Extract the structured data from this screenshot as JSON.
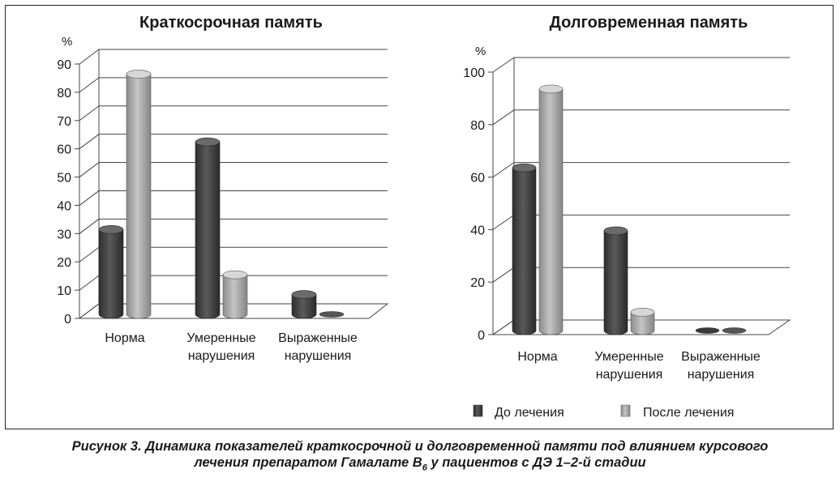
{
  "chart_data": [
    {
      "type": "bar",
      "title": "Краткосрочная память",
      "ylabel": "%",
      "ylim": [
        0,
        90
      ],
      "yticks": [
        "0",
        "10",
        "20",
        "30",
        "40",
        "50",
        "60",
        "70",
        "80",
        "90"
      ],
      "categories": [
        "Норма",
        "Умеренные нарушения",
        "Выраженные нарушения"
      ],
      "series": [
        {
          "name": "До лечения",
          "values": [
            30,
            61,
            7
          ]
        },
        {
          "name": "После лечения",
          "values": [
            85,
            14,
            0
          ]
        }
      ],
      "grid": true
    },
    {
      "type": "bar",
      "title": "Долговременная память",
      "ylabel": "%",
      "ylim": [
        0,
        100
      ],
      "yticks": [
        "0",
        "20",
        "40",
        "60",
        "80",
        "100"
      ],
      "categories": [
        "Норма",
        "Умеренные нарушения",
        "Выраженные нарушения"
      ],
      "series": [
        {
          "name": "До лечения",
          "values": [
            62,
            38,
            0
          ]
        },
        {
          "name": "После лечения",
          "values": [
            92,
            7,
            0
          ]
        }
      ],
      "grid": true
    }
  ],
  "legend": {
    "items": [
      "До лечения",
      "После лечения"
    ],
    "colors": [
      "#4a4a4a",
      "#a6a6a6"
    ]
  },
  "caption": {
    "line1": "Рисунок 3. Динамика показателей краткосрочной и долговременной памяти под влиянием курсового",
    "line2_before": "лечения препаратом Гамалате В",
    "line2_sub": "6",
    "line2_after": " у пациентов с ДЭ 1–2-й стадии"
  }
}
